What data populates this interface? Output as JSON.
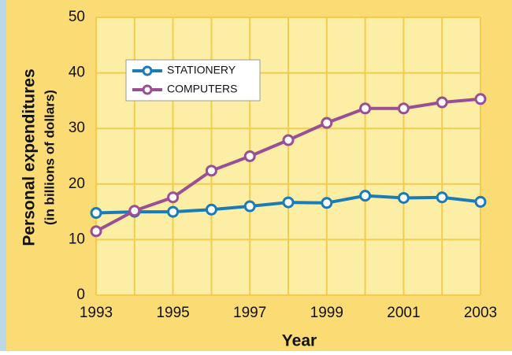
{
  "chart_data": {
    "type": "line",
    "x_label": "Year",
    "y_label": "Personal expenditures",
    "y_sublabel": "(in billions of dollars)",
    "x": [
      1993,
      1994,
      1995,
      1996,
      1997,
      1998,
      1999,
      2000,
      2001,
      2002,
      2003
    ],
    "xlim": [
      1993,
      2003
    ],
    "xticks": [
      1993,
      1995,
      1997,
      1999,
      2001,
      2003
    ],
    "ylim": [
      0,
      50
    ],
    "yticks": [
      0,
      10,
      20,
      30,
      40,
      50
    ],
    "grid": true,
    "series": [
      {
        "name": "STATIONERY",
        "color": "#1a7bb9",
        "values": [
          14.8,
          15.0,
          15.0,
          15.4,
          16.0,
          16.7,
          16.6,
          17.9,
          17.5,
          17.6,
          16.8
        ]
      },
      {
        "name": "COMPUTERS",
        "color": "#9a4f95",
        "values": [
          11.5,
          15.2,
          17.6,
          22.4,
          25.0,
          27.9,
          31.0,
          33.6,
          33.6,
          34.7,
          35.3
        ]
      }
    ]
  }
}
